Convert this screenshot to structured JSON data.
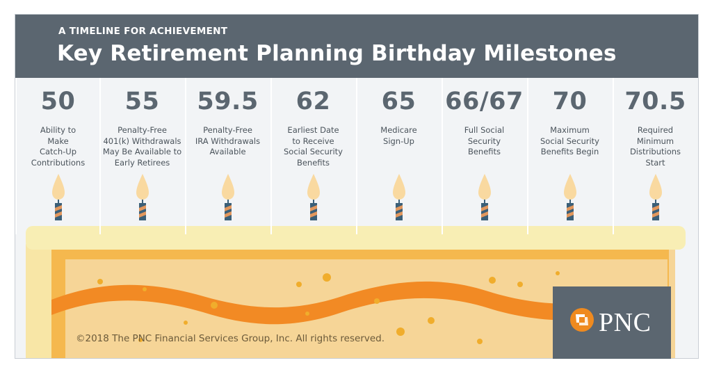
{
  "header": {
    "kicker": "A TIMELINE FOR ACHIEVEMENT",
    "title": "Key Retirement Planning Birthday Milestones"
  },
  "milestones": [
    {
      "age": "50",
      "description": "Ability to\nMake\nCatch-Up\nContributions"
    },
    {
      "age": "55",
      "description": "Penalty-Free\n401(k) Withdrawals\nMay Be Available to\nEarly Retirees"
    },
    {
      "age": "59.5",
      "description": "Penalty-Free\nIRA Withdrawals\nAvailable"
    },
    {
      "age": "62",
      "description": "Earliest Date\nto Receive\nSocial Security\nBenefits"
    },
    {
      "age": "65",
      "description": "Medicare\nSign-Up"
    },
    {
      "age": "66/67",
      "description": "Full Social\nSecurity\nBenefits"
    },
    {
      "age": "70",
      "description": "Maximum\nSocial Security\nBenefits Begin"
    },
    {
      "age": "70.5",
      "description": "Required\nMinimum\nDistributions\nStart"
    }
  ],
  "footer": {
    "copyright": "©2018 The PNC Financial Services Group, Inc. All rights reserved.",
    "logo_text": "PNC"
  },
  "colors": {
    "header_bg": "#5b6670",
    "panel_bg": "#f2f4f6",
    "cake_top": "#f8eeb4",
    "cake_body": "#f6d597",
    "cake_edge": "#f5b84e",
    "ribbon": "#f28a24",
    "flame": "#f9d9a0",
    "candle_blue": "#3b5f78",
    "candle_orange": "#e2975d",
    "accent": "#ef8a1f"
  },
  "icons": [
    "candle-icon",
    "pnc-logo-icon"
  ]
}
